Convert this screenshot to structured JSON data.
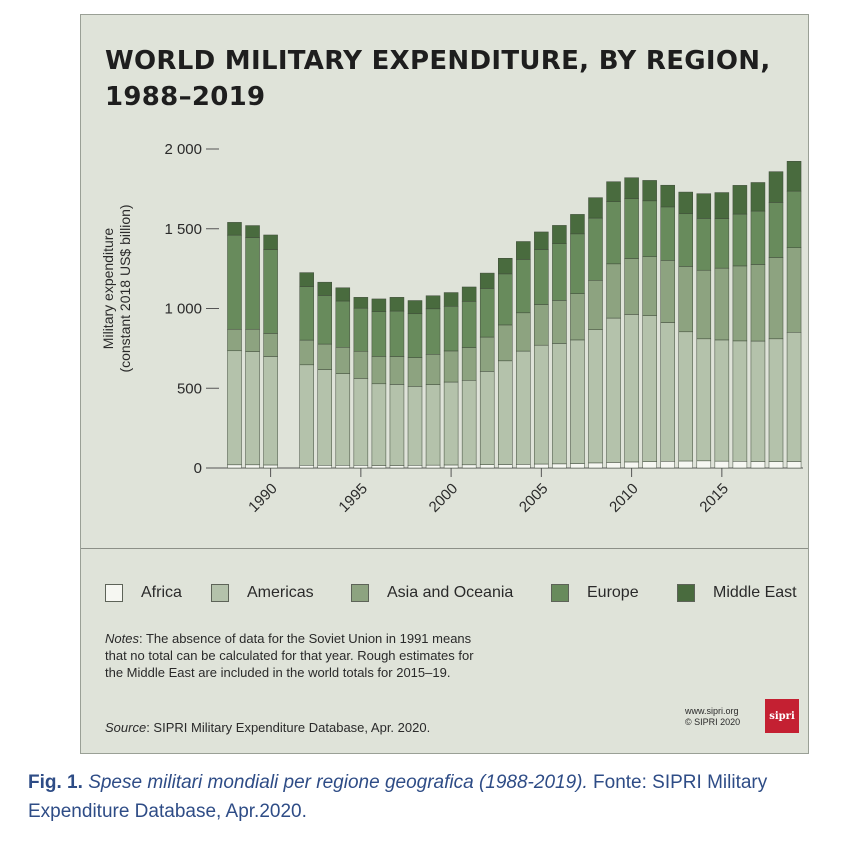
{
  "title": "WORLD MILITARY EXPENDITURE, BY REGION, 1988–2019",
  "notes": {
    "label": "Notes",
    "text": ": The absence of data for the Soviet Union in 1991 means that no total can be calculated for that year. Rough estimates for the Middle East are included in the world totals for 2015–19."
  },
  "source": {
    "label": "Source",
    "text": ": SIPRI Military Expenditure Database, Apr. 2020."
  },
  "credit": {
    "line1": "www.sipri.org",
    "line2": "© SIPRI 2020"
  },
  "logo_text": "sipri",
  "caption": {
    "label": "Fig. 1.",
    "italic": "Spese militari mondiali per regione geografica (1988-2019).",
    "rest": "Fonte: SIPRI Military Expenditure Database, Apr.2020."
  },
  "colors": {
    "Africa": "#f6f7f2",
    "Americas": "#b4c2ab",
    "Asia and Oceania": "#8da380",
    "Europe": "#688b5c",
    "Middle East": "#496b3e",
    "bar_outline": "#3f4a3a",
    "panel": "#dfe3d9",
    "axis": "#555555"
  },
  "chart_data": {
    "type": "bar",
    "stacked": true,
    "title": "WORLD MILITARY EXPENDITURE, BY REGION, 1988–2019",
    "ylabel": "Military expenditure (constant 2018 US$ billion)",
    "xlabel": "",
    "ylim": [
      0,
      2000
    ],
    "yticks": [
      0,
      500,
      1000,
      1500,
      2000
    ],
    "ytick_labels": [
      "0",
      "500",
      "1 000",
      "1 500",
      "2 000"
    ],
    "xticks": [
      1990,
      1995,
      2000,
      2005,
      2010,
      2015
    ],
    "xtick_labels": [
      "1990",
      "1995",
      "2000",
      "2005",
      "2010",
      "2015"
    ],
    "legend_position": "bottom",
    "categories": [
      1988,
      1989,
      1990,
      1991,
      1992,
      1993,
      1994,
      1995,
      1996,
      1997,
      1998,
      1999,
      2000,
      2001,
      2002,
      2003,
      2004,
      2005,
      2006,
      2007,
      2008,
      2009,
      2010,
      2011,
      2012,
      2013,
      2014,
      2015,
      2016,
      2017,
      2018,
      2019
    ],
    "series": [
      {
        "name": "Africa",
        "values": [
          20,
          20,
          19,
          null,
          17,
          17,
          17,
          17,
          16,
          16,
          17,
          18,
          19,
          20,
          21,
          22,
          23,
          25,
          26,
          28,
          32,
          35,
          38,
          40,
          42,
          44,
          45,
          43,
          42,
          41,
          40,
          41
        ]
      },
      {
        "name": "Americas",
        "values": [
          715,
          710,
          680,
          null,
          630,
          600,
          575,
          545,
          512,
          508,
          495,
          505,
          520,
          530,
          585,
          650,
          710,
          745,
          755,
          775,
          835,
          905,
          925,
          915,
          870,
          810,
          765,
          760,
          755,
          755,
          770,
          810
        ]
      },
      {
        "name": "Asia and Oceania",
        "values": [
          135,
          140,
          145,
          null,
          155,
          160,
          165,
          170,
          172,
          175,
          180,
          190,
          195,
          205,
          215,
          225,
          240,
          255,
          270,
          290,
          310,
          340,
          350,
          370,
          390,
          410,
          430,
          450,
          470,
          480,
          510,
          530
        ]
      },
      {
        "name": "Europe",
        "values": [
          590,
          575,
          525,
          null,
          335,
          305,
          290,
          270,
          280,
          285,
          275,
          285,
          280,
          290,
          305,
          320,
          335,
          345,
          355,
          375,
          390,
          390,
          375,
          350,
          335,
          330,
          325,
          310,
          325,
          335,
          345,
          355
        ]
      },
      {
        "name": "Middle East",
        "values": [
          80,
          75,
          92,
          null,
          88,
          83,
          83,
          68,
          80,
          86,
          83,
          82,
          86,
          90,
          96,
          98,
          112,
          110,
          115,
          122,
          128,
          125,
          132,
          128,
          136,
          136,
          155,
          164,
          180,
          179,
          193,
          187
        ]
      }
    ]
  }
}
